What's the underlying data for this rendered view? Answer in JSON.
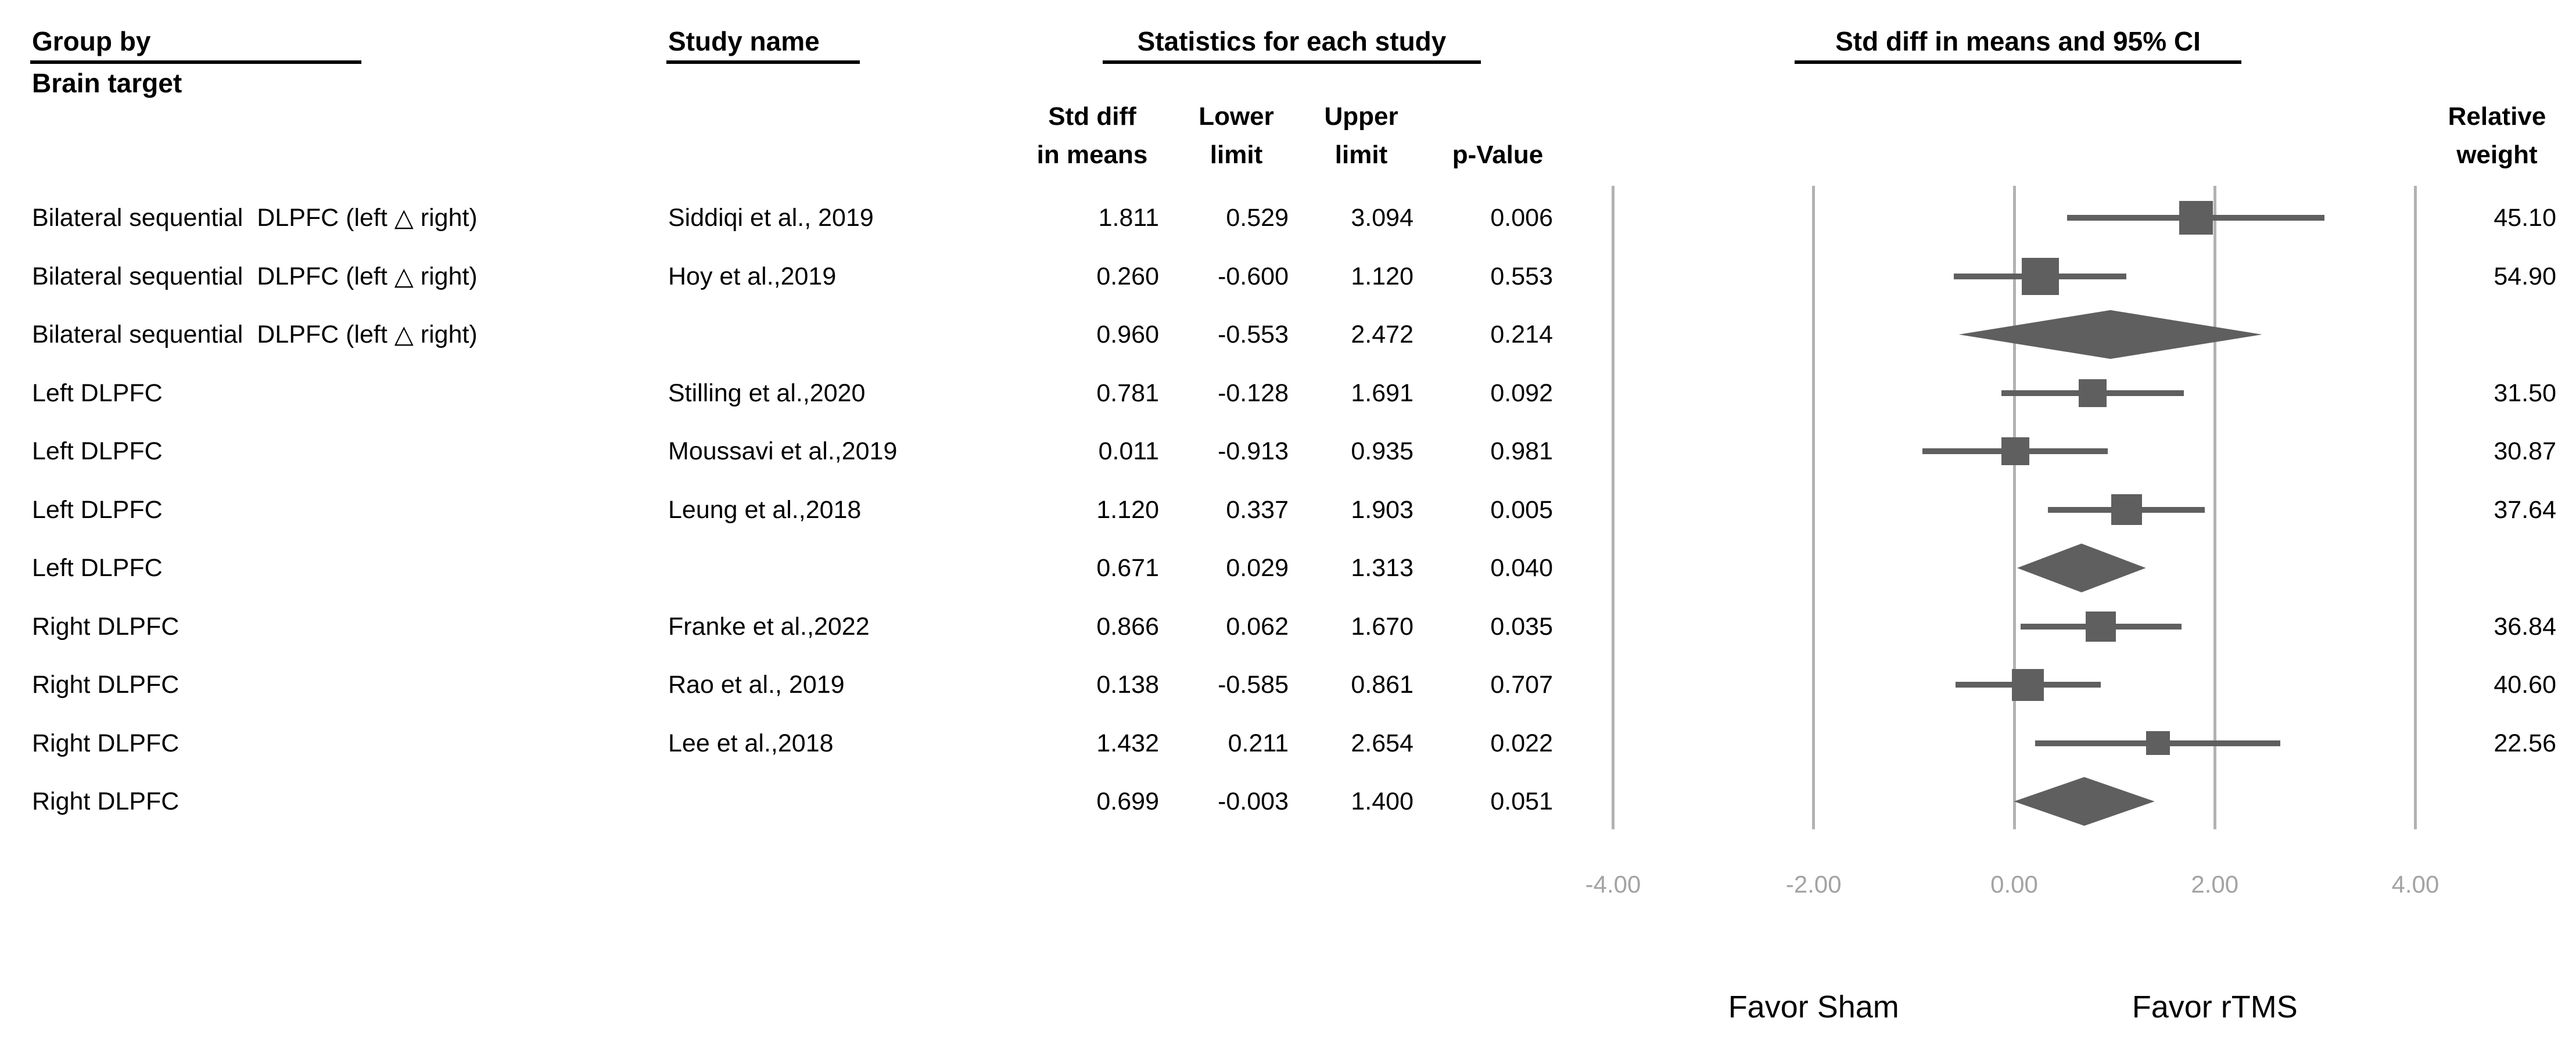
{
  "headers": {
    "group_by": "Group by",
    "brain_target": "Brain target",
    "study_name": "Study name",
    "statistics": "Statistics for each study",
    "ci": "Std diff in means and 95% CI",
    "std_diff": "Std diff\nin means",
    "lower": "Lower\nlimit",
    "upper": "Upper\nlimit",
    "p_value": "p-Value",
    "relative_weight": "Relative\nweight"
  },
  "chart_data": {
    "type": "forest",
    "title": "Std diff in means and 95% CI",
    "group_label": "Brain target",
    "xlim": [
      -4.2,
      4.2
    ],
    "x_ticks": [
      -4,
      -2,
      0,
      2,
      4
    ],
    "grid": true,
    "x_direction_labels": {
      "left": "Favor Sham",
      "right": "Favor rTMS"
    },
    "colors": {
      "marker": "#5f5f5f",
      "gridline": "#b2b2b2",
      "tick_label": "#a3a3a3",
      "text": "#000000"
    },
    "rows": [
      {
        "group": "Bilateral sequential  DLPFC (left △ right)",
        "study": "Siddiqi et al., 2019",
        "std_diff": 1.811,
        "lower": 0.529,
        "upper": 3.094,
        "p": 0.006,
        "weight": 45.1,
        "kind": "study"
      },
      {
        "group": "Bilateral sequential  DLPFC (left △ right)",
        "study": "Hoy et al.,2019",
        "std_diff": 0.26,
        "lower": -0.6,
        "upper": 1.12,
        "p": 0.553,
        "weight": 54.9,
        "kind": "study"
      },
      {
        "group": "Bilateral sequential  DLPFC (left △ right)",
        "study": "",
        "std_diff": 0.96,
        "lower": -0.553,
        "upper": 2.472,
        "p": 0.214,
        "weight": null,
        "kind": "summary"
      },
      {
        "group": "Left DLPFC",
        "study": "Stilling et al.,2020",
        "std_diff": 0.781,
        "lower": -0.128,
        "upper": 1.691,
        "p": 0.092,
        "weight": 31.5,
        "kind": "study"
      },
      {
        "group": "Left DLPFC",
        "study": "Moussavi et al.,2019",
        "std_diff": 0.011,
        "lower": -0.913,
        "upper": 0.935,
        "p": 0.981,
        "weight": 30.87,
        "kind": "study"
      },
      {
        "group": "Left DLPFC",
        "study": "Leung et al.,2018",
        "std_diff": 1.12,
        "lower": 0.337,
        "upper": 1.903,
        "p": 0.005,
        "weight": 37.64,
        "kind": "study"
      },
      {
        "group": "Left DLPFC",
        "study": "",
        "std_diff": 0.671,
        "lower": 0.029,
        "upper": 1.313,
        "p": 0.04,
        "weight": null,
        "kind": "summary"
      },
      {
        "group": "Right DLPFC",
        "study": "Franke et al.,2022",
        "std_diff": 0.866,
        "lower": 0.062,
        "upper": 1.67,
        "p": 0.035,
        "weight": 36.84,
        "kind": "study"
      },
      {
        "group": "Right DLPFC",
        "study": "Rao et al., 2019",
        "std_diff": 0.138,
        "lower": -0.585,
        "upper": 0.861,
        "p": 0.707,
        "weight": 40.6,
        "kind": "study"
      },
      {
        "group": "Right DLPFC",
        "study": "Lee et al.,2018",
        "std_diff": 1.432,
        "lower": 0.211,
        "upper": 2.654,
        "p": 0.022,
        "weight": 22.56,
        "kind": "study"
      },
      {
        "group": "Right DLPFC",
        "study": "",
        "std_diff": 0.699,
        "lower": -0.003,
        "upper": 1.4,
        "p": 0.051,
        "weight": null,
        "kind": "summary"
      }
    ]
  }
}
